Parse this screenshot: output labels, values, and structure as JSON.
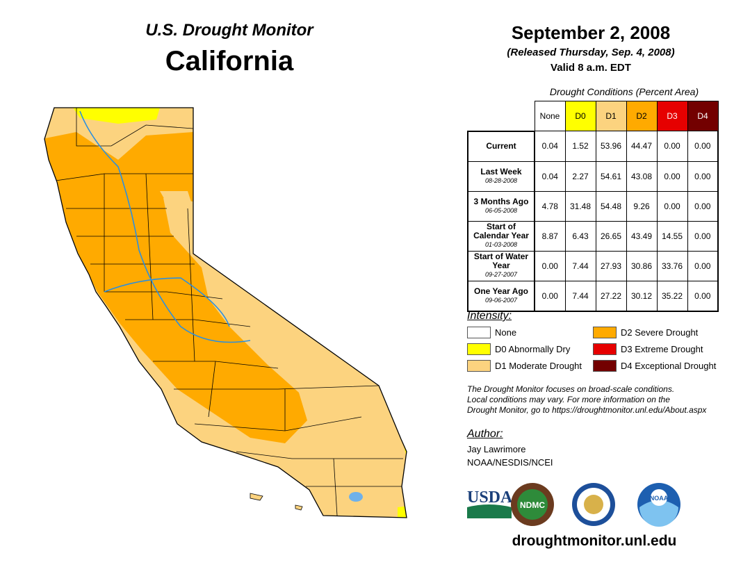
{
  "header": {
    "subtitle": "U.S. Drought Monitor",
    "state": "California",
    "date": "September 2, 2008",
    "released": "(Released Thursday, Sep. 4, 2008)",
    "valid": "Valid 8 a.m. EDT"
  },
  "table": {
    "caption": "Drought Conditions (Percent Area)",
    "columns": [
      "None",
      "D0",
      "D1",
      "D2",
      "D3",
      "D4"
    ],
    "rows": [
      {
        "label": "Current",
        "date": "",
        "values": [
          "0.04",
          "1.52",
          "53.96",
          "44.47",
          "0.00",
          "0.00"
        ]
      },
      {
        "label": "Last Week",
        "date": "08-28-2008",
        "values": [
          "0.04",
          "2.27",
          "54.61",
          "43.08",
          "0.00",
          "0.00"
        ]
      },
      {
        "label": "3 Months Ago",
        "date": "06-05-2008",
        "values": [
          "4.78",
          "31.48",
          "54.48",
          "9.26",
          "0.00",
          "0.00"
        ]
      },
      {
        "label": "Start of Calendar Year",
        "date": "01-03-2008",
        "values": [
          "8.87",
          "6.43",
          "26.65",
          "43.49",
          "14.55",
          "0.00"
        ]
      },
      {
        "label": "Start of Water Year",
        "date": "09-27-2007",
        "values": [
          "0.00",
          "7.44",
          "27.93",
          "30.86",
          "33.76",
          "0.00"
        ]
      },
      {
        "label": "One Year Ago",
        "date": "09-06-2007",
        "values": [
          "0.00",
          "7.44",
          "27.22",
          "30.12",
          "35.22",
          "0.00"
        ]
      }
    ]
  },
  "legend": {
    "title": "Intensity:",
    "items": [
      {
        "label": "None",
        "color": "#ffffff"
      },
      {
        "label": "D0 Abnormally Dry",
        "color": "#ffff00"
      },
      {
        "label": "D1 Moderate Drought",
        "color": "#fcd37f"
      },
      {
        "label": "D2 Severe Drought",
        "color": "#ffaa00"
      },
      {
        "label": "D3 Extreme Drought",
        "color": "#e60000"
      },
      {
        "label": "D4 Exceptional Drought",
        "color": "#730000"
      }
    ]
  },
  "note": [
    "The Drought Monitor focuses on broad-scale conditions.",
    "Local conditions may vary. For more information on the",
    "Drought Monitor, go to https://droughtmonitor.unl.edu/About.aspx"
  ],
  "author": {
    "title": "Author:",
    "name": "Jay Lawrimore",
    "org": "NOAA/NESDIS/NCEI"
  },
  "logos": [
    "USDA",
    "NDMC",
    "NOAA"
  ],
  "footer_url": "droughtmonitor.unl.edu"
}
